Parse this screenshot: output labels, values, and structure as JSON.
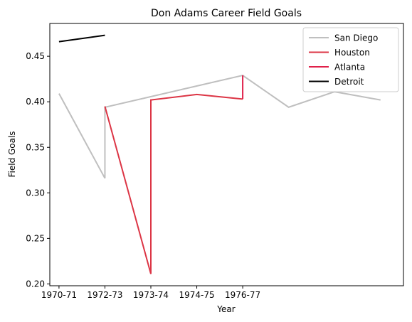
{
  "chart_data": {
    "type": "line",
    "title": "Don Adams  Career Field Goals",
    "xlabel": "Year",
    "ylabel": "Field Goals",
    "x_ticks": [
      "1970-71",
      "1972-73",
      "1973-74",
      "1974-75",
      "1976-77"
    ],
    "xlim": [
      -0.2,
      7.5
    ],
    "ylim": [
      0.198,
      0.486
    ],
    "y_ticks": [
      "0.20",
      "0.25",
      "0.30",
      "0.35",
      "0.40",
      "0.45"
    ],
    "legend_position": "top-right",
    "grid": false,
    "series": [
      {
        "name": "San Diego",
        "color": "#bfbfbf",
        "x": [
          0,
          1,
          1,
          4,
          5,
          6,
          7
        ],
        "y": [
          0.409,
          0.316,
          0.394,
          0.429,
          0.394,
          0.411,
          0.402
        ]
      },
      {
        "name": "Houston",
        "color": "#dc3545",
        "x": [
          1,
          2,
          2,
          3,
          4
        ],
        "y": [
          0.395,
          0.211,
          0.402,
          0.408,
          0.403
        ]
      },
      {
        "name": "Atlanta",
        "color": "#e0204a",
        "x": [
          4,
          4
        ],
        "y": [
          0.403,
          0.429
        ]
      },
      {
        "name": "Detroit",
        "color": "#000000",
        "x": [
          0,
          1
        ],
        "y": [
          0.466,
          0.473
        ]
      }
    ]
  }
}
